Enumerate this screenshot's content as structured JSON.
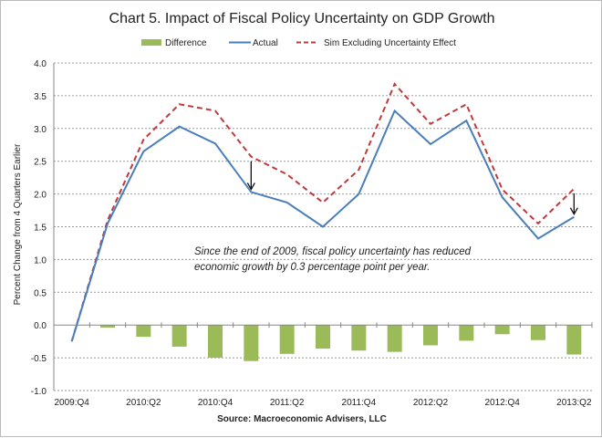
{
  "chart_data": {
    "type": "bar+line",
    "title": "Chart 5.  Impact of Fiscal Policy Uncertainty on GDP Growth",
    "ylabel": "Percent Change from 4 Quarters Earlier",
    "xlabel": "",
    "source": "Source: Macroeconomic Advisers, LLC",
    "annotation": [
      "Since the end of 2009, fiscal policy uncertainty has reduced",
      "economic growth by 0.3 percentage point per year."
    ],
    "ylim": [
      -1.0,
      4.0
    ],
    "yticks": [
      "4.0",
      "3.5",
      "3.0",
      "2.5",
      "2.0",
      "1.5",
      "1.0",
      "0.5",
      "0.0",
      "-0.5",
      "-1.0"
    ],
    "grid": true,
    "legend_position": "top",
    "categories": [
      "2009:Q4",
      "2010:Q1",
      "2010:Q2",
      "2010:Q3",
      "2010:Q4",
      "2011:Q1",
      "2011:Q2",
      "2011:Q3",
      "2011:Q4",
      "2012:Q1",
      "2012:Q2",
      "2012:Q3",
      "2012:Q4",
      "2013:Q1",
      "2013:Q2"
    ],
    "xtick_labels": [
      "2009:Q4",
      "2010:Q2",
      "2010:Q4",
      "2011:Q2",
      "2011:Q4",
      "2012:Q2",
      "2012:Q4",
      "2013:Q2"
    ],
    "series": [
      {
        "name": "Difference",
        "kind": "bar",
        "color": "#9bbb59",
        "values": [
          0,
          -0.04,
          -0.18,
          -0.33,
          -0.5,
          -0.55,
          -0.44,
          -0.36,
          -0.39,
          -0.41,
          -0.31,
          -0.24,
          -0.14,
          -0.23,
          -0.45
        ]
      },
      {
        "name": "Actual",
        "kind": "line",
        "color": "#4a7ebb",
        "values": [
          -0.25,
          1.55,
          2.65,
          3.03,
          2.77,
          2.03,
          1.87,
          1.5,
          2.0,
          3.27,
          2.76,
          3.12,
          1.95,
          1.32,
          1.65
        ]
      },
      {
        "name": "Sim Excluding Uncertainty Effect",
        "kind": "dashed-line",
        "color": "#c0393b",
        "values": [
          -0.25,
          1.6,
          2.83,
          3.37,
          3.27,
          2.57,
          2.3,
          1.87,
          2.37,
          3.68,
          3.07,
          3.37,
          2.07,
          1.55,
          2.08
        ]
      }
    ]
  }
}
